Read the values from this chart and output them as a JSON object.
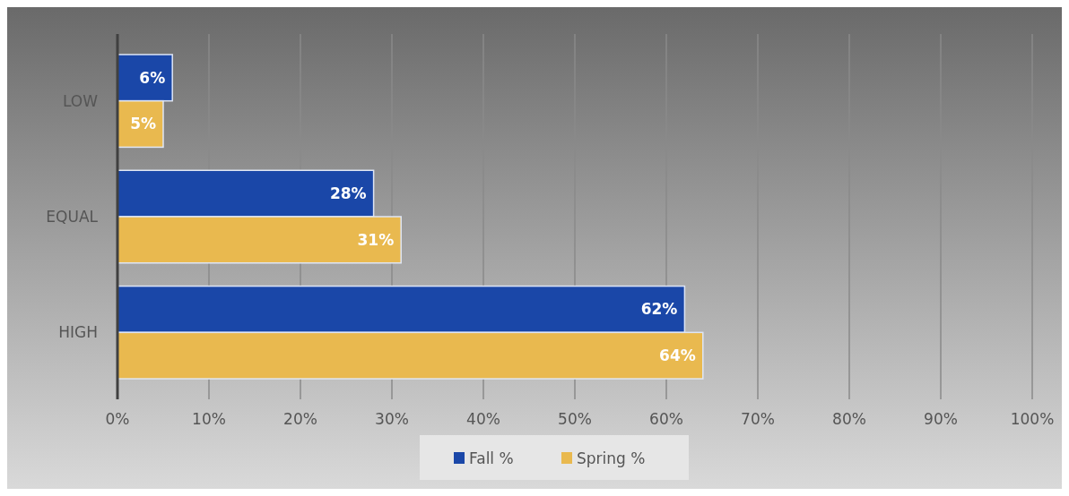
{
  "chart_data": {
    "type": "bar",
    "orientation": "horizontal",
    "categories": [
      "LOW",
      "EQUAL",
      "HIGH"
    ],
    "series": [
      {
        "name": "Fall %",
        "color": "#1a47a8",
        "values": [
          6,
          28,
          62
        ],
        "value_labels": [
          "6%",
          "28%",
          "62%"
        ]
      },
      {
        "name": "Spring %",
        "color": "#e9b94f",
        "values": [
          5,
          31,
          64
        ],
        "value_labels": [
          "5%",
          "31%",
          "64%"
        ]
      }
    ],
    "xlim": [
      0,
      100
    ],
    "xticks": [
      {
        "value": 0,
        "label": "0%"
      },
      {
        "value": 10,
        "label": "10%"
      },
      {
        "value": 20,
        "label": "20%"
      },
      {
        "value": 30,
        "label": "30%"
      },
      {
        "value": 40,
        "label": "40%"
      },
      {
        "value": 50,
        "label": "50%"
      },
      {
        "value": 60,
        "label": "60%"
      },
      {
        "value": 70,
        "label": "70%"
      },
      {
        "value": 80,
        "label": "80%"
      },
      {
        "value": 90,
        "label": "90%"
      },
      {
        "value": 100,
        "label": "100%"
      }
    ],
    "grid": "x",
    "legend": "bottom"
  }
}
